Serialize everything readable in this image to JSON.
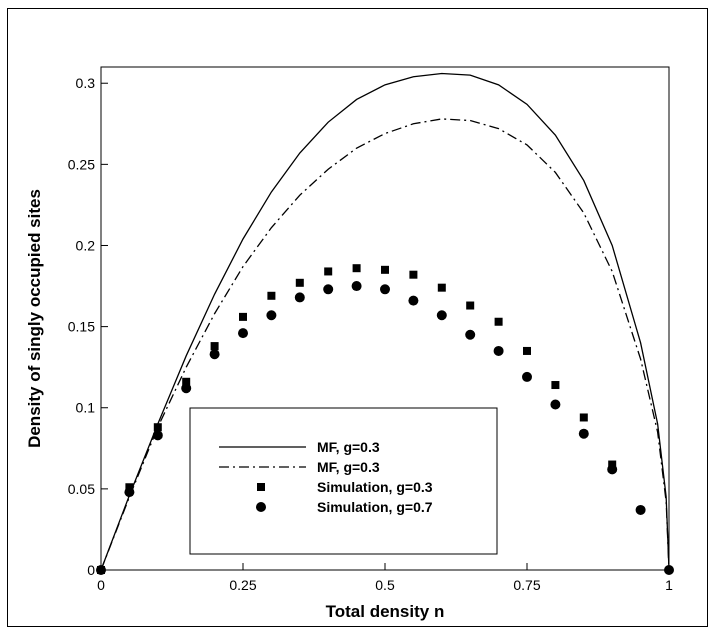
{
  "chart_data": {
    "type": "line",
    "title": "",
    "xlabel": "Total density n",
    "ylabel": "Density of singly occupied sites",
    "xlim": [
      0,
      1
    ],
    "ylim": [
      0,
      0.31
    ],
    "x_ticks": [
      0,
      0.25,
      0.5,
      0.75,
      1
    ],
    "x_tick_labels": [
      "0",
      "0.25",
      "0.5",
      "0.75",
      "1"
    ],
    "y_ticks": [
      0,
      0.05,
      0.1,
      0.15,
      0.2,
      0.25,
      0.3
    ],
    "y_tick_labels": [
      "0",
      "0.05",
      "0.1",
      "0.15",
      "0.2",
      "0.25",
      "0.3"
    ],
    "grid": false,
    "legend_position": "bottom-left",
    "series": [
      {
        "name": "MF, g=0.3",
        "kind": "line",
        "style": "solid",
        "x": [
          0,
          0.05,
          0.1,
          0.15,
          0.2,
          0.25,
          0.3,
          0.35,
          0.4,
          0.45,
          0.5,
          0.55,
          0.6,
          0.65,
          0.7,
          0.75,
          0.8,
          0.85,
          0.9,
          0.95,
          0.98,
          0.995,
          1
        ],
        "y": [
          0,
          0.046,
          0.09,
          0.132,
          0.17,
          0.204,
          0.233,
          0.257,
          0.276,
          0.29,
          0.299,
          0.304,
          0.306,
          0.305,
          0.299,
          0.287,
          0.268,
          0.24,
          0.2,
          0.14,
          0.09,
          0.045,
          0
        ]
      },
      {
        "name": "MF, g=0.3",
        "kind": "line",
        "style": "dashdot",
        "x": [
          0,
          0.05,
          0.1,
          0.15,
          0.2,
          0.25,
          0.3,
          0.35,
          0.4,
          0.45,
          0.5,
          0.55,
          0.6,
          0.65,
          0.7,
          0.75,
          0.8,
          0.85,
          0.9,
          0.95,
          0.98,
          0.995,
          1
        ],
        "y": [
          0,
          0.045,
          0.088,
          0.125,
          0.158,
          0.187,
          0.211,
          0.231,
          0.247,
          0.26,
          0.269,
          0.275,
          0.278,
          0.277,
          0.272,
          0.262,
          0.245,
          0.22,
          0.184,
          0.13,
          0.085,
          0.042,
          0
        ]
      },
      {
        "name": "Simulation, g=0.3",
        "kind": "scatter",
        "marker": "square",
        "x": [
          0,
          0.05,
          0.1,
          0.15,
          0.2,
          0.25,
          0.3,
          0.35,
          0.4,
          0.45,
          0.5,
          0.55,
          0.6,
          0.65,
          0.7,
          0.75,
          0.8,
          0.85,
          0.9
        ],
        "y": [
          0,
          0.051,
          0.088,
          0.116,
          0.138,
          0.156,
          0.169,
          0.177,
          0.184,
          0.186,
          0.185,
          0.182,
          0.174,
          0.163,
          0.153,
          0.135,
          0.114,
          0.094,
          0.065
        ]
      },
      {
        "name": "Simulation, g=0.7",
        "kind": "scatter",
        "marker": "circle",
        "x": [
          0,
          0.05,
          0.1,
          0.15,
          0.2,
          0.25,
          0.3,
          0.35,
          0.4,
          0.45,
          0.5,
          0.55,
          0.6,
          0.65,
          0.7,
          0.75,
          0.8,
          0.85,
          0.9,
          0.95,
          1
        ],
        "y": [
          0,
          0.048,
          0.083,
          0.112,
          0.133,
          0.146,
          0.157,
          0.168,
          0.173,
          0.175,
          0.173,
          0.166,
          0.157,
          0.145,
          0.135,
          0.119,
          0.102,
          0.084,
          0.062,
          0.037,
          0
        ]
      }
    ]
  }
}
